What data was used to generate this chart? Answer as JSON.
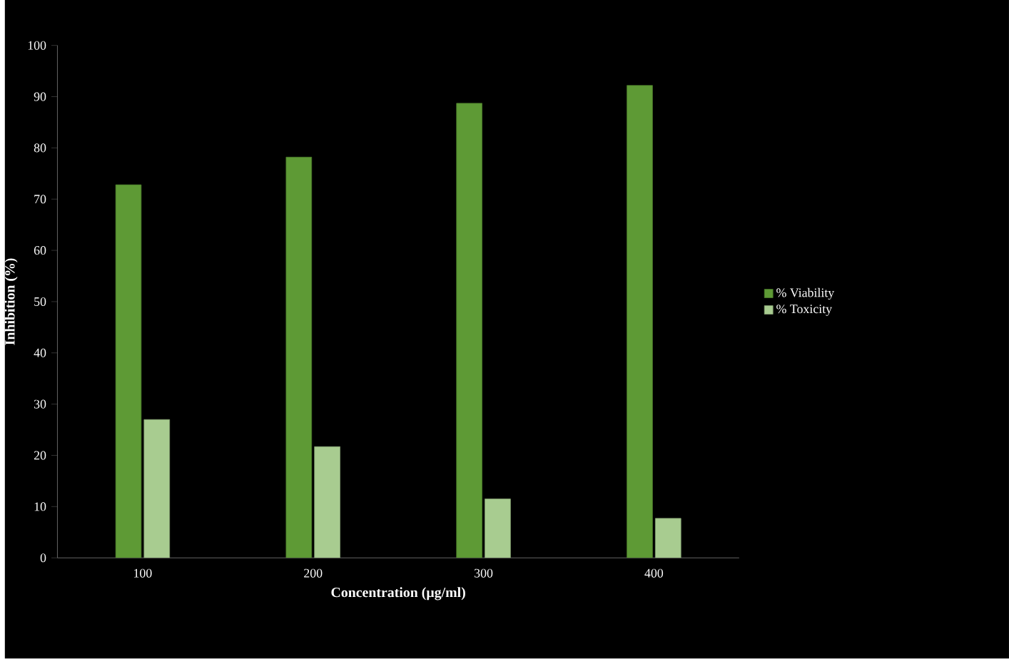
{
  "chart_data": {
    "type": "bar",
    "xlabel": "Concentration (µg/ml)",
    "ylabel": "Inhibition (%)",
    "categories": [
      "100",
      "200",
      "300",
      "400"
    ],
    "series": [
      {
        "name": "% Viability",
        "color": "#5e9a35",
        "values": [
          72.8,
          78.2,
          88.7,
          92.2
        ]
      },
      {
        "name": "% Toxicity",
        "color": "#a8cc90",
        "values": [
          27.0,
          21.7,
          11.5,
          7.7
        ]
      }
    ],
    "ylim": [
      0,
      100
    ],
    "yticks": [
      0,
      10,
      20,
      30,
      40,
      50,
      60,
      70,
      80,
      90,
      100
    ],
    "grid": false,
    "legend": "right"
  }
}
